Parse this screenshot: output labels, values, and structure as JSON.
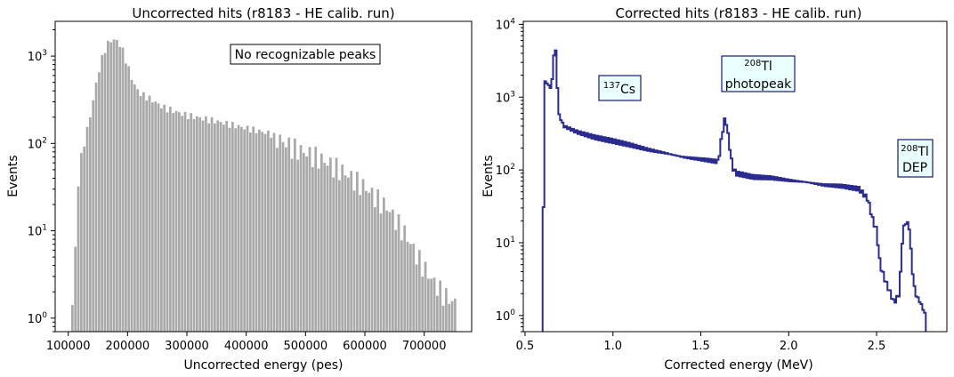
{
  "chart_data": [
    {
      "type": "histogram",
      "title": "Uncorrected hits (r8183 - HE calib. run)",
      "xlabel": "Uncorrected energy (pes)",
      "ylabel": "Events",
      "xlim": [
        78000,
        780000
      ],
      "ylim": [
        0.7,
        2500
      ],
      "yscale": "log",
      "xticks": [
        100000,
        200000,
        300000,
        400000,
        500000,
        600000,
        700000
      ],
      "xtick_labels": [
        "100000",
        "200000",
        "300000",
        "400000",
        "500000",
        "600000",
        "700000"
      ],
      "yticks": [
        1,
        10,
        100,
        1000
      ],
      "ytick_labels": [
        "10^0",
        "10^1",
        "10^2",
        "10^3"
      ],
      "bin_edges": [
        105000,
        755000
      ],
      "bar_color": "#a9a9a9",
      "annotation": {
        "text": "No recognizable peaks",
        "box_color": "#ffffff",
        "border_color": "#000000"
      },
      "series": [
        {
          "points": [
            [
              105000,
              1
            ],
            [
              110000,
              2
            ],
            [
              115000,
              20
            ],
            [
              120000,
              60
            ],
            [
              130000,
              120
            ],
            [
              140000,
              250
            ],
            [
              150000,
              600
            ],
            [
              160000,
              1100
            ],
            [
              170000,
              1500
            ],
            [
              180000,
              1550
            ],
            [
              190000,
              1300
            ],
            [
              200000,
              800
            ],
            [
              210000,
              500
            ],
            [
              220000,
              380
            ],
            [
              240000,
              320
            ],
            [
              260000,
              260
            ],
            [
              300000,
              210
            ],
            [
              350000,
              180
            ],
            [
              400000,
              150
            ],
            [
              440000,
              130
            ],
            [
              480000,
              90
            ],
            [
              520000,
              70
            ],
            [
              560000,
              50
            ],
            [
              600000,
              32
            ],
            [
              640000,
              18
            ],
            [
              670000,
              9
            ],
            [
              690000,
              5
            ],
            [
              710000,
              3
            ],
            [
              730000,
              2
            ],
            [
              750000,
              1.5
            ]
          ]
        }
      ]
    },
    {
      "type": "histogram",
      "title": "Corrected hits (r8183 - HE calib. run)",
      "xlabel": "Corrected energy (MeV)",
      "ylabel": "Events",
      "xlim": [
        0.49,
        2.9
      ],
      "ylim": [
        0.6,
        11000
      ],
      "yscale": "log",
      "xticks": [
        0.5,
        1.0,
        1.5,
        2.0,
        2.5
      ],
      "xtick_labels": [
        "0.5",
        "1.0",
        "1.5",
        "2.0",
        "2.5"
      ],
      "yticks": [
        1,
        10,
        100,
        1000,
        10000
      ],
      "ytick_labels": [
        "10^0",
        "10^1",
        "10^2",
        "10^3",
        "10^4"
      ],
      "line_color": "#2b2b8f",
      "annotations": [
        {
          "sup": "137",
          "text": "Cs"
        },
        {
          "sup": "208",
          "text": "Tl",
          "line2": "photopeak"
        },
        {
          "sup": "208",
          "text": "Tl",
          "line2": "DEP"
        }
      ],
      "annotation_style": {
        "box_color": "#eaffff",
        "border_color": "#1a1a6e"
      },
      "series": [
        {
          "points": [
            [
              0.6,
              0.6
            ],
            [
              0.61,
              1700
            ],
            [
              0.63,
              1500
            ],
            [
              0.65,
              1300
            ],
            [
              0.66,
              2500
            ],
            [
              0.67,
              6500
            ],
            [
              0.68,
              2500
            ],
            [
              0.69,
              600
            ],
            [
              0.72,
              400
            ],
            [
              0.8,
              330
            ],
            [
              0.9,
              280
            ],
            [
              1.0,
              250
            ],
            [
              1.1,
              220
            ],
            [
              1.2,
              190
            ],
            [
              1.3,
              170
            ],
            [
              1.4,
              150
            ],
            [
              1.5,
              140
            ],
            [
              1.6,
              130
            ],
            [
              1.62,
              300
            ],
            [
              1.64,
              550
            ],
            [
              1.66,
              250
            ],
            [
              1.68,
              110
            ],
            [
              1.7,
              90
            ],
            [
              1.8,
              80
            ],
            [
              1.9,
              78
            ],
            [
              2.0,
              72
            ],
            [
              2.1,
              68
            ],
            [
              2.2,
              62
            ],
            [
              2.3,
              60
            ],
            [
              2.4,
              55
            ],
            [
              2.45,
              40
            ],
            [
              2.48,
              20
            ],
            [
              2.5,
              15
            ],
            [
              2.52,
              5
            ],
            [
              2.55,
              3
            ],
            [
              2.58,
              2
            ],
            [
              2.6,
              1.5
            ],
            [
              2.63,
              2
            ],
            [
              2.65,
              15
            ],
            [
              2.67,
              20
            ],
            [
              2.69,
              15
            ],
            [
              2.7,
              5
            ],
            [
              2.72,
              2
            ],
            [
              2.75,
              1.5
            ],
            [
              2.78,
              1
            ]
          ]
        }
      ]
    }
  ]
}
